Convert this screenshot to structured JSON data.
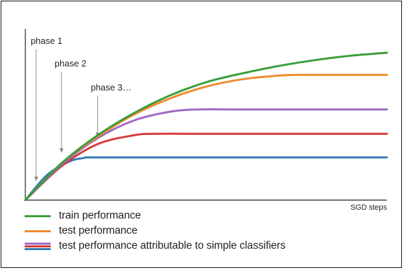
{
  "chart_data": {
    "type": "line",
    "title": "",
    "xlabel": "SGD steps",
    "ylabel": "",
    "xlim": [
      0,
      1
    ],
    "ylim": [
      0,
      1
    ],
    "grid": false,
    "series": [
      {
        "name": "train performance",
        "color": "#3a9e3a",
        "x": [
          0,
          0.1,
          0.2,
          0.3,
          0.4,
          0.5,
          0.6,
          0.7,
          0.8,
          0.9,
          1.0
        ],
        "y": [
          0,
          0.25,
          0.44,
          0.59,
          0.71,
          0.8,
          0.86,
          0.91,
          0.95,
          0.98,
          1.0
        ]
      },
      {
        "name": "test performance",
        "color": "#f08a2c",
        "x": [
          0,
          0.1,
          0.2,
          0.3,
          0.4,
          0.5,
          0.6,
          0.7,
          0.75,
          0.8,
          0.9,
          1.0
        ],
        "y": [
          0,
          0.25,
          0.43,
          0.58,
          0.69,
          0.77,
          0.82,
          0.845,
          0.85,
          0.85,
          0.85,
          0.85
        ]
      },
      {
        "name": "test performance attributable to simple classifiers",
        "color": "#9b6cc4",
        "x": [
          0,
          0.1,
          0.2,
          0.3,
          0.4,
          0.48,
          0.6,
          0.8,
          1.0
        ],
        "y": [
          0,
          0.24,
          0.42,
          0.54,
          0.6,
          0.615,
          0.615,
          0.615,
          0.615
        ]
      },
      {
        "name": "",
        "color": "#d63a3a",
        "x": [
          0,
          0.1,
          0.2,
          0.3,
          0.36,
          0.5,
          0.8,
          1.0
        ],
        "y": [
          0,
          0.23,
          0.38,
          0.44,
          0.45,
          0.45,
          0.45,
          0.45
        ]
      },
      {
        "name": "",
        "color": "#3a7ab8",
        "x": [
          0,
          0.06,
          0.12,
          0.16,
          0.2,
          0.5,
          1.0
        ],
        "y": [
          0,
          0.17,
          0.26,
          0.285,
          0.29,
          0.29,
          0.29
        ]
      }
    ],
    "annotations": [
      {
        "text": "phase 1",
        "x": 0.03
      },
      {
        "text": "phase 2",
        "x": 0.1
      },
      {
        "text": "phase 3…",
        "x": 0.2
      }
    ]
  },
  "legend": {
    "items": [
      {
        "label": "train performance",
        "colors": [
          "#3a9e3a"
        ]
      },
      {
        "label": "test performance",
        "colors": [
          "#f08a2c"
        ]
      },
      {
        "label": "test performance attributable to simple classifiers",
        "colors": [
          "#9b6cc4",
          "#d63a3a",
          "#3a7ab8"
        ]
      }
    ]
  }
}
